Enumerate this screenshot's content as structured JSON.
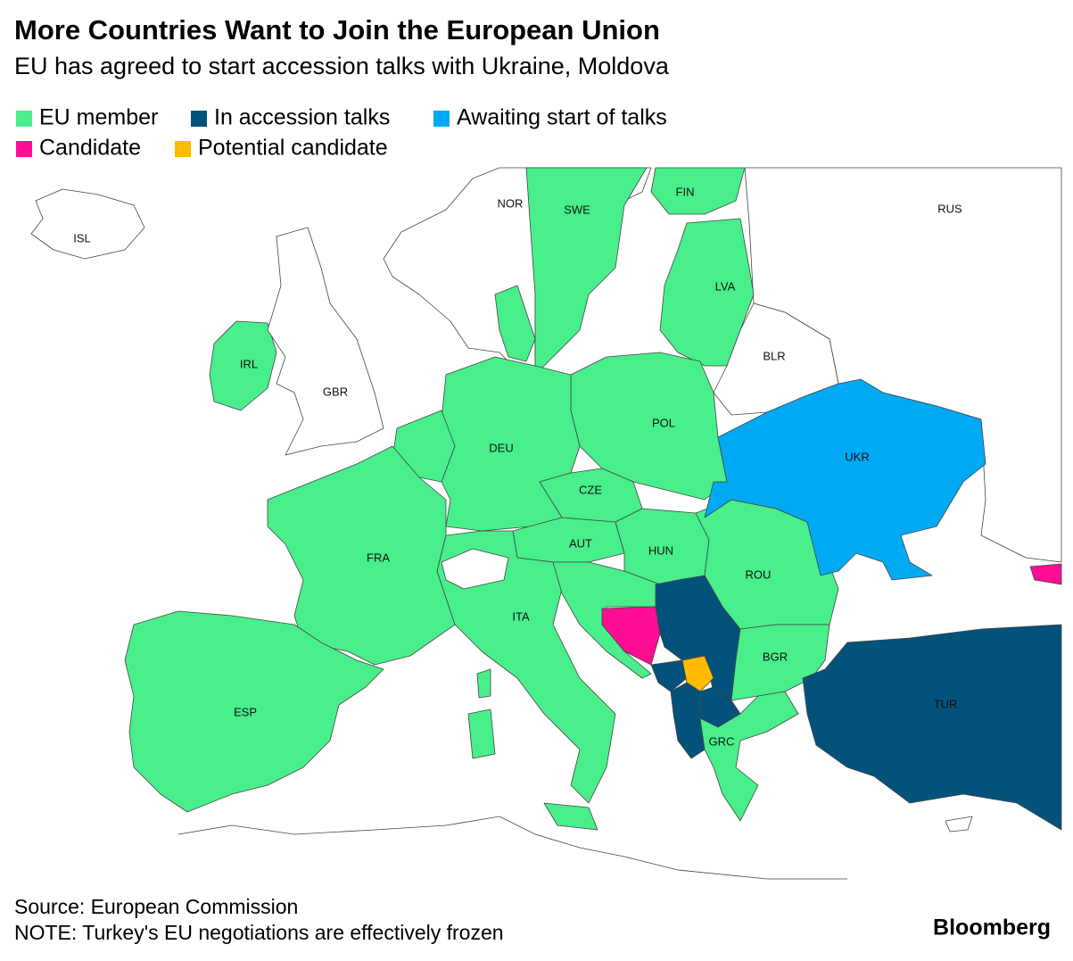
{
  "title": "More Countries Want to Join the European Union",
  "subtitle": "EU has agreed to start accession talks with Ukraine, Moldova",
  "legend": [
    {
      "name": "EU member",
      "color": "#48ef8b"
    },
    {
      "name": "In accession talks",
      "color": "#03527c"
    },
    {
      "name": "Awaiting start of talks",
      "color": "#00a9f4"
    },
    {
      "name": "Candidate",
      "color": "#ff0d93"
    },
    {
      "name": "Potential candidate",
      "color": "#ffbb00"
    }
  ],
  "countries": [
    {
      "label": "ISL"
    },
    {
      "label": "NOR"
    },
    {
      "label": "SWE",
      "status": 0
    },
    {
      "label": "FIN",
      "status": 0
    },
    {
      "label": "RUS"
    },
    {
      "label": "LVA",
      "status": 0
    },
    {
      "label": "BLR"
    },
    {
      "label": "IRL",
      "status": 0
    },
    {
      "label": "GBR"
    },
    {
      "label": "POL",
      "status": 0
    },
    {
      "label": "DEU",
      "status": 0
    },
    {
      "label": "UKR",
      "status": 2
    },
    {
      "label": "CZE",
      "status": 0
    },
    {
      "label": "FRA",
      "status": 0
    },
    {
      "label": "AUT",
      "status": 0
    },
    {
      "label": "HUN",
      "status": 0
    },
    {
      "label": "ROU",
      "status": 0
    },
    {
      "label": "ITA",
      "status": 0
    },
    {
      "label": "BGR",
      "status": 0
    },
    {
      "label": "TUR",
      "status": 1
    },
    {
      "label": "ESP",
      "status": 0
    },
    {
      "label": "GRC",
      "status": 0
    }
  ],
  "source": "Source: European Commission",
  "note": "NOTE: Turkey's EU negotiations are effectively frozen",
  "brand": "Bloomberg"
}
